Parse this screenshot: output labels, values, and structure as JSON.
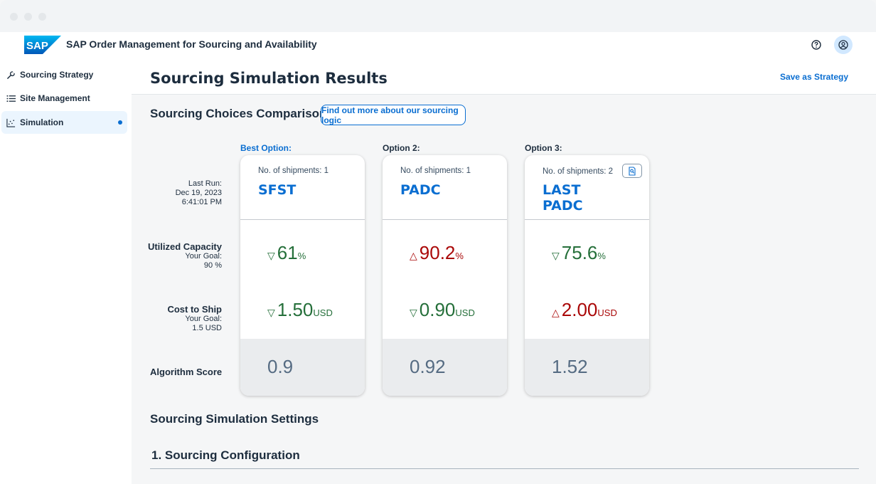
{
  "shell": {
    "logo_text": "SAP",
    "app_title": "SAP Order Management for Sourcing and Availability",
    "icons": [
      "help-icon",
      "user-icon"
    ]
  },
  "sidebar": {
    "items": [
      {
        "label": "Sourcing Strategy",
        "icon": "wrench-icon"
      },
      {
        "label": "Site Management",
        "icon": "list-icon"
      },
      {
        "label": "Simulation",
        "icon": "chart-icon",
        "active": true
      }
    ]
  },
  "header": {
    "title": "Sourcing Simulation Results",
    "save_label": "Save as Strategy"
  },
  "comparison": {
    "title": "Sourcing Choices Comparison",
    "logic_button": "Find out more about our sourcing logic",
    "last_run": {
      "label": "Last Run:",
      "date": "Dec 19, 2023",
      "time": "6:41:01 PM"
    },
    "rows": {
      "capacity": {
        "label": "Utilized Capacity",
        "goal_label": "Your Goal:",
        "goal_value": "90 %"
      },
      "cost": {
        "label": "Cost to Ship",
        "goal_label": "Your Goal:",
        "goal_value": "1.5 USD"
      },
      "score": {
        "label": "Algorithm Score"
      }
    },
    "options": [
      {
        "heading": "Best Option:",
        "shipments": "No. of shipments: 1",
        "sites": [
          "SFST"
        ],
        "capacity": {
          "arrow": "▽",
          "value": "61",
          "unit": "%",
          "status": "good"
        },
        "cost": {
          "arrow": "▽",
          "value": "1.50",
          "unit": "USD",
          "status": "good"
        },
        "score": "0.9"
      },
      {
        "heading": "Option 2:",
        "shipments": "No. of shipments: 1",
        "sites": [
          "PADC"
        ],
        "capacity": {
          "arrow": "△",
          "value": "90.2",
          "unit": "%",
          "status": "bad"
        },
        "cost": {
          "arrow": "▽",
          "value": "0.90",
          "unit": "USD",
          "status": "good"
        },
        "score": "0.92"
      },
      {
        "heading": "Option 3:",
        "shipments": "No. of shipments: 2",
        "sites": [
          "LAST",
          "PADC"
        ],
        "capacity": {
          "arrow": "▽",
          "value": "75.6",
          "unit": "%",
          "status": "good"
        },
        "cost": {
          "arrow": "△",
          "value": "2.00",
          "unit": "USD",
          "status": "bad"
        },
        "score": "1.52"
      }
    ]
  },
  "settings": {
    "title": "Sourcing Simulation Settings",
    "config_title": "1. Sourcing Configuration"
  },
  "colors": {
    "accent": "#0a6ed1",
    "good": "#256f3a",
    "bad": "#aa0808"
  }
}
